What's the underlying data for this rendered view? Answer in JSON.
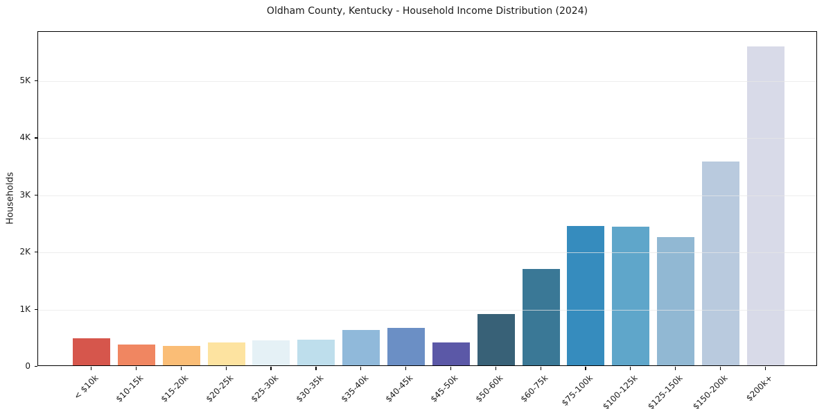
{
  "chart_data": {
    "type": "bar",
    "title": "Oldham County, Kentucky - Household Income Distribution (2024)",
    "xlabel": "",
    "ylabel": "Households",
    "categories": [
      "< $10k",
      "$10-15k",
      "$15-20k",
      "$20-25k",
      "$25-30k",
      "$30-35k",
      "$35-40k",
      "$40-45k",
      "$45-50k",
      "$50-60k",
      "$60-75k",
      "$75-100k",
      "$100-125k",
      "$125-150k",
      "$150-200k",
      "$200k+"
    ],
    "values": [
      475,
      370,
      345,
      405,
      440,
      455,
      625,
      650,
      405,
      900,
      1690,
      2445,
      2425,
      2245,
      3565,
      5580
    ],
    "bar_colors": [
      "#d6564c",
      "#f08661",
      "#fabd76",
      "#fde3a0",
      "#e5f1f6",
      "#bedeec",
      "#90b9da",
      "#6b8fc5",
      "#5b58a7",
      "#386177",
      "#3a7896",
      "#368cbe",
      "#5fa6ca",
      "#91b8d3",
      "#b9cade",
      "#d8dae8"
    ],
    "ylim": [
      0,
      5860
    ],
    "yticks": [
      {
        "v": 0,
        "label": "0"
      },
      {
        "v": 1000,
        "label": "1K"
      },
      {
        "v": 2000,
        "label": "2K"
      },
      {
        "v": 3000,
        "label": "3K"
      },
      {
        "v": 4000,
        "label": "4K"
      },
      {
        "v": 5000,
        "label": "5K"
      }
    ],
    "grid": "horizontal",
    "legend": "none",
    "colors": {
      "axis": "#000000",
      "grid": "#e7e7e7",
      "text": "#1a1a1a",
      "background": "#ffffff"
    }
  }
}
